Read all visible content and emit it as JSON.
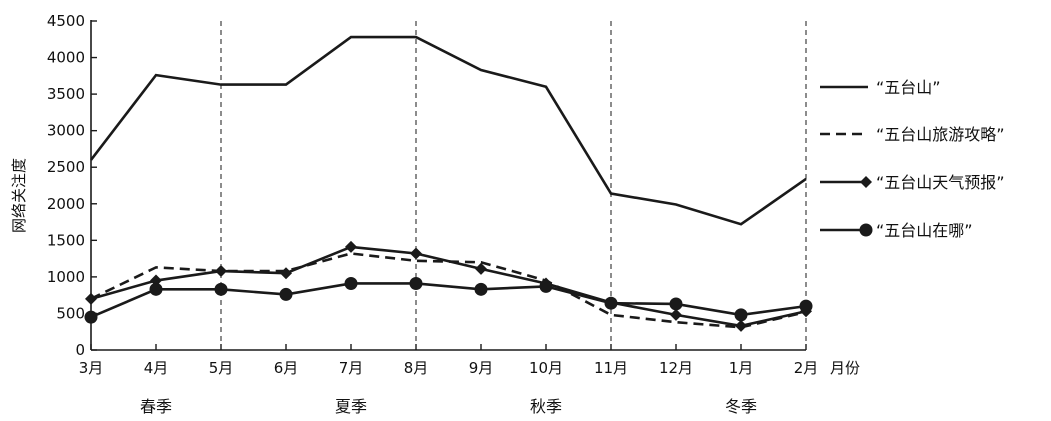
{
  "chart_data": {
    "type": "line",
    "title": "",
    "ylabel": "网络关注度",
    "xlabel": "月份",
    "ylim": [
      0,
      4500
    ],
    "yticks": [
      0,
      500,
      1000,
      1500,
      2000,
      2500,
      3000,
      3500,
      4000,
      4500
    ],
    "categories": [
      "3月",
      "4月",
      "5月",
      "6月",
      "7月",
      "8月",
      "9月",
      "10月",
      "11月",
      "12月",
      "1月",
      "2月"
    ],
    "season_dividers_after": [
      "5月",
      "8月",
      "11月",
      "2月"
    ],
    "seasons": [
      {
        "label": "春季",
        "center": "4月"
      },
      {
        "label": "夏季",
        "center": "7月"
      },
      {
        "label": "秋季",
        "center": "10月"
      },
      {
        "label": "冬季",
        "center": "1月"
      }
    ],
    "legend_position": "right",
    "grid": false,
    "series": [
      {
        "name": "“五台山”",
        "style": "solid",
        "marker": "none",
        "values": [
          2600,
          3760,
          3630,
          3630,
          4280,
          4280,
          3830,
          3600,
          2140,
          1990,
          1720,
          2340
        ]
      },
      {
        "name": "“五台山旅游攻略”",
        "style": "dashed",
        "marker": "none",
        "values": [
          700,
          1130,
          1080,
          1080,
          1320,
          1220,
          1200,
          950,
          480,
          380,
          310,
          520
        ]
      },
      {
        "name": "“五台山天气预报”",
        "style": "solid",
        "marker": "diamond",
        "values": [
          700,
          950,
          1080,
          1050,
          1410,
          1320,
          1110,
          910,
          650,
          480,
          330,
          530
        ]
      },
      {
        "name": "“五台山在哪”",
        "style": "solid",
        "marker": "circle",
        "values": [
          450,
          830,
          830,
          760,
          910,
          910,
          830,
          870,
          640,
          630,
          480,
          600
        ]
      }
    ],
    "color": "#1a1a1a"
  }
}
